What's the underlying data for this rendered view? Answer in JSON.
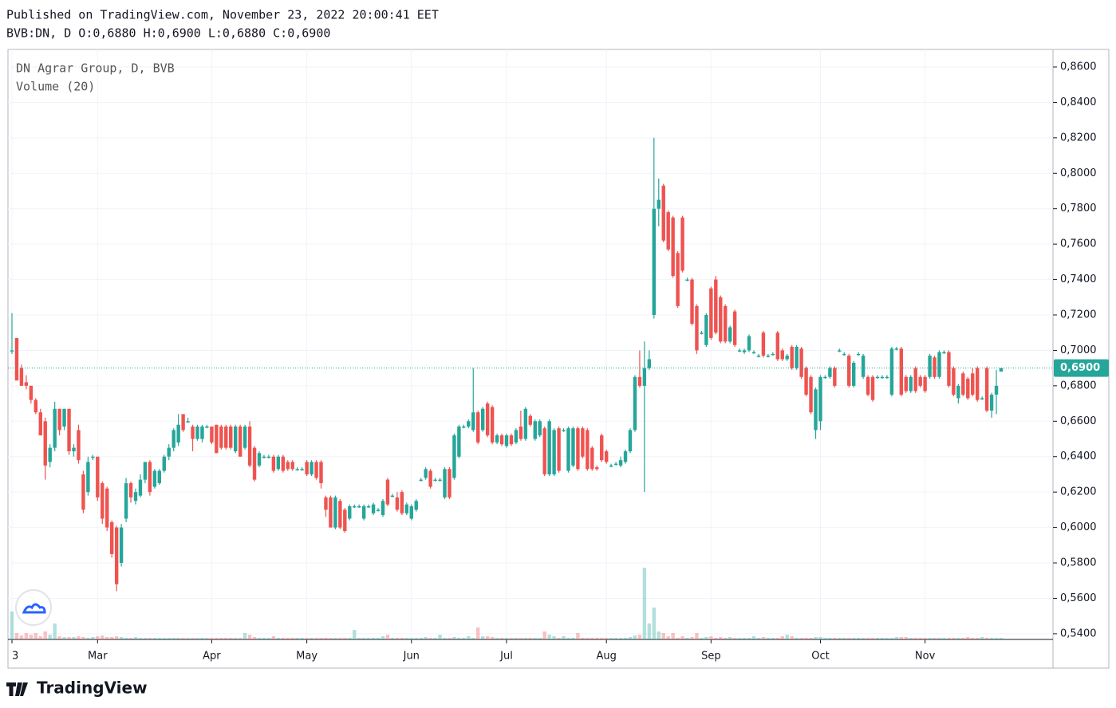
{
  "chart_data": {
    "type": "candlestick",
    "title": "Published on TradingView.com, November 23, 2022 20:00:41 EET",
    "subtitle": "BVB:DN, D O:0,6880 H:0,6900 L:0,6880 C:0,6900",
    "series_label": "DN Agrar Group, D, BVB",
    "volume_label": "Volume (20)",
    "brand": "TradingView",
    "up_color": "#26a69a",
    "down_color": "#ef5350",
    "ylim": [
      0.5368,
      0.8699
    ],
    "yticks": [
      {
        "value": 0.54,
        "label": "0,5400"
      },
      {
        "value": 0.56,
        "label": "0,5600"
      },
      {
        "value": 0.58,
        "label": "0,5800"
      },
      {
        "value": 0.6,
        "label": "0,6000"
      },
      {
        "value": 0.62,
        "label": "0,6200"
      },
      {
        "value": 0.64,
        "label": "0,6400"
      },
      {
        "value": 0.66,
        "label": "0,6600"
      },
      {
        "value": 0.68,
        "label": "0,6800"
      },
      {
        "value": 0.7,
        "label": "0,7000"
      },
      {
        "value": 0.72,
        "label": "0,7200"
      },
      {
        "value": 0.74,
        "label": "0,7400"
      },
      {
        "value": 0.76,
        "label": "0,7600"
      },
      {
        "value": 0.78,
        "label": "0,7800"
      },
      {
        "value": 0.8,
        "label": "0,8000"
      },
      {
        "value": 0.82,
        "label": "0,8200"
      },
      {
        "value": 0.84,
        "label": "0,8400"
      },
      {
        "value": 0.86,
        "label": "0,8600"
      }
    ],
    "xticks": [
      {
        "value": 0,
        "label": "3"
      },
      {
        "value": 18,
        "label": "Mar"
      },
      {
        "value": 42,
        "label": "Apr"
      },
      {
        "value": 62,
        "label": "May"
      },
      {
        "value": 84,
        "label": "Jun"
      },
      {
        "value": 104,
        "label": "Jul"
      },
      {
        "value": 125,
        "label": "Aug"
      },
      {
        "value": 147,
        "label": "Sep"
      },
      {
        "value": 170,
        "label": "Oct"
      },
      {
        "value": 192,
        "label": "Nov"
      }
    ],
    "grid": true,
    "last_price": {
      "value": 0.69,
      "label": "0,6900"
    },
    "ohlc": [
      [
        0.7,
        0.721,
        0.698,
        0.7
      ],
      [
        0.707,
        0.707,
        0.683,
        0.683
      ],
      [
        0.69,
        0.692,
        0.68,
        0.68
      ],
      [
        0.682,
        0.686,
        0.678,
        0.68
      ],
      [
        0.68,
        0.68,
        0.67,
        0.672
      ],
      [
        0.672,
        0.673,
        0.664,
        0.665
      ],
      [
        0.665,
        0.667,
        0.652,
        0.652
      ],
      [
        0.66,
        0.662,
        0.627,
        0.635
      ],
      [
        0.637,
        0.647,
        0.634,
        0.645
      ],
      [
        0.645,
        0.671,
        0.643,
        0.667
      ],
      [
        0.667,
        0.667,
        0.652,
        0.655
      ],
      [
        0.657,
        0.667,
        0.655,
        0.667
      ],
      [
        0.667,
        0.667,
        0.641,
        0.643
      ],
      [
        0.643,
        0.647,
        0.64,
        0.645
      ],
      [
        0.655,
        0.658,
        0.636,
        0.638
      ],
      [
        0.63,
        0.632,
        0.608,
        0.61
      ],
      [
        0.62,
        0.64,
        0.618,
        0.637
      ],
      [
        0.64,
        0.641,
        0.638,
        0.64
      ],
      [
        0.64,
        0.64,
        0.615,
        0.617
      ],
      [
        0.625,
        0.626,
        0.602,
        0.605
      ],
      [
        0.622,
        0.623,
        0.598,
        0.6
      ],
      [
        0.603,
        0.604,
        0.583,
        0.585
      ],
      [
        0.6,
        0.601,
        0.564,
        0.568
      ],
      [
        0.58,
        0.602,
        0.578,
        0.6
      ],
      [
        0.605,
        0.628,
        0.603,
        0.625
      ],
      [
        0.625,
        0.626,
        0.614,
        0.617
      ],
      [
        0.615,
        0.622,
        0.613,
        0.62
      ],
      [
        0.618,
        0.63,
        0.617,
        0.627
      ],
      [
        0.627,
        0.637,
        0.625,
        0.637
      ],
      [
        0.637,
        0.638,
        0.618,
        0.62
      ],
      [
        0.623,
        0.633,
        0.622,
        0.632
      ],
      [
        0.625,
        0.633,
        0.624,
        0.632
      ],
      [
        0.632,
        0.641,
        0.631,
        0.64
      ],
      [
        0.64,
        0.647,
        0.638,
        0.645
      ],
      [
        0.645,
        0.656,
        0.643,
        0.655
      ],
      [
        0.648,
        0.664,
        0.646,
        0.658
      ],
      [
        0.664,
        0.664,
        0.654,
        0.655
      ],
      [
        0.66,
        0.662,
        0.659,
        0.66
      ],
      [
        0.657,
        0.658,
        0.643,
        0.65
      ],
      [
        0.65,
        0.658,
        0.649,
        0.657
      ],
      [
        0.65,
        0.658,
        0.648,
        0.657
      ],
      [
        0.657,
        0.658,
        0.656,
        0.657
      ],
      [
        0.657,
        0.657,
        0.647,
        0.648
      ],
      [
        0.658,
        0.658,
        0.642,
        0.642
      ],
      [
        0.657,
        0.658,
        0.644,
        0.645
      ],
      [
        0.657,
        0.658,
        0.644,
        0.645
      ],
      [
        0.657,
        0.658,
        0.644,
        0.645
      ],
      [
        0.643,
        0.658,
        0.642,
        0.657
      ],
      [
        0.657,
        0.658,
        0.64,
        0.64
      ],
      [
        0.645,
        0.658,
        0.644,
        0.657
      ],
      [
        0.657,
        0.66,
        0.634,
        0.635
      ],
      [
        0.645,
        0.646,
        0.626,
        0.627
      ],
      [
        0.635,
        0.643,
        0.634,
        0.642
      ],
      [
        0.64,
        0.641,
        0.639,
        0.64
      ],
      [
        0.64,
        0.641,
        0.639,
        0.64
      ],
      [
        0.64,
        0.641,
        0.631,
        0.632
      ],
      [
        0.633,
        0.641,
        0.632,
        0.64
      ],
      [
        0.64,
        0.641,
        0.631,
        0.632
      ],
      [
        0.637,
        0.638,
        0.632,
        0.633
      ],
      [
        0.637,
        0.638,
        0.632,
        0.633
      ],
      [
        0.633,
        0.634,
        0.632,
        0.633
      ],
      [
        0.633,
        0.634,
        0.632,
        0.633
      ],
      [
        0.637,
        0.638,
        0.629,
        0.63
      ],
      [
        0.63,
        0.638,
        0.629,
        0.637
      ],
      [
        0.637,
        0.638,
        0.627,
        0.628
      ],
      [
        0.637,
        0.638,
        0.622,
        0.625
      ],
      [
        0.617,
        0.618,
        0.606,
        0.61
      ],
      [
        0.617,
        0.618,
        0.6,
        0.6
      ],
      [
        0.6,
        0.618,
        0.599,
        0.617
      ],
      [
        0.615,
        0.616,
        0.599,
        0.6
      ],
      [
        0.61,
        0.611,
        0.597,
        0.598
      ],
      [
        0.605,
        0.613,
        0.604,
        0.612
      ],
      [
        0.612,
        0.613,
        0.611,
        0.612
      ],
      [
        0.612,
        0.613,
        0.611,
        0.612
      ],
      [
        0.605,
        0.613,
        0.604,
        0.612
      ],
      [
        0.612,
        0.613,
        0.611,
        0.612
      ],
      [
        0.608,
        0.614,
        0.607,
        0.613
      ],
      [
        0.61,
        0.611,
        0.609,
        0.61
      ],
      [
        0.607,
        0.616,
        0.606,
        0.615
      ],
      [
        0.627,
        0.628,
        0.612,
        0.613
      ],
      [
        0.618,
        0.619,
        0.617,
        0.618
      ],
      [
        0.617,
        0.62,
        0.609,
        0.61
      ],
      [
        0.62,
        0.621,
        0.607,
        0.608
      ],
      [
        0.608,
        0.614,
        0.607,
        0.613
      ],
      [
        0.605,
        0.613,
        0.604,
        0.612
      ],
      [
        0.61,
        0.616,
        0.609,
        0.615
      ],
      [
        0.627,
        0.628,
        0.626,
        0.627
      ],
      [
        0.628,
        0.634,
        0.627,
        0.633
      ],
      [
        0.632,
        0.633,
        0.622,
        0.623
      ],
      [
        0.627,
        0.628,
        0.626,
        0.627
      ],
      [
        0.627,
        0.628,
        0.626,
        0.627
      ],
      [
        0.617,
        0.634,
        0.616,
        0.633
      ],
      [
        0.633,
        0.634,
        0.616,
        0.617
      ],
      [
        0.628,
        0.653,
        0.627,
        0.652
      ],
      [
        0.64,
        0.658,
        0.639,
        0.657
      ],
      [
        0.657,
        0.658,
        0.656,
        0.657
      ],
      [
        0.657,
        0.661,
        0.656,
        0.66
      ],
      [
        0.655,
        0.69,
        0.654,
        0.665
      ],
      [
        0.665,
        0.666,
        0.647,
        0.648
      ],
      [
        0.655,
        0.668,
        0.654,
        0.667
      ],
      [
        0.67,
        0.671,
        0.651,
        0.652
      ],
      [
        0.668,
        0.669,
        0.647,
        0.648
      ],
      [
        0.648,
        0.653,
        0.647,
        0.652
      ],
      [
        0.652,
        0.653,
        0.646,
        0.647
      ],
      [
        0.646,
        0.653,
        0.645,
        0.652
      ],
      [
        0.652,
        0.653,
        0.646,
        0.647
      ],
      [
        0.648,
        0.656,
        0.647,
        0.655
      ],
      [
        0.657,
        0.666,
        0.649,
        0.65
      ],
      [
        0.65,
        0.668,
        0.649,
        0.667
      ],
      [
        0.663,
        0.664,
        0.657,
        0.658
      ],
      [
        0.65,
        0.661,
        0.649,
        0.66
      ],
      [
        0.652,
        0.661,
        0.651,
        0.66
      ],
      [
        0.656,
        0.657,
        0.629,
        0.63
      ],
      [
        0.63,
        0.661,
        0.629,
        0.66
      ],
      [
        0.63,
        0.656,
        0.629,
        0.655
      ],
      [
        0.656,
        0.657,
        0.631,
        0.632
      ],
      [
        0.655,
        0.656,
        0.654,
        0.655
      ],
      [
        0.632,
        0.657,
        0.631,
        0.656
      ],
      [
        0.635,
        0.657,
        0.634,
        0.656
      ],
      [
        0.656,
        0.657,
        0.632,
        0.633
      ],
      [
        0.656,
        0.657,
        0.639,
        0.64
      ],
      [
        0.655,
        0.656,
        0.632,
        0.633
      ],
      [
        0.645,
        0.646,
        0.632,
        0.633
      ],
      [
        0.634,
        0.635,
        0.632,
        0.633
      ],
      [
        0.652,
        0.653,
        0.637,
        0.638
      ],
      [
        0.643,
        0.644,
        0.636,
        0.637
      ],
      [
        0.635,
        0.636,
        0.634,
        0.635
      ],
      [
        0.636,
        0.637,
        0.635,
        0.636
      ],
      [
        0.635,
        0.64,
        0.634,
        0.638
      ],
      [
        0.637,
        0.644,
        0.636,
        0.643
      ],
      [
        0.643,
        0.656,
        0.642,
        0.655
      ],
      [
        0.655,
        0.686,
        0.654,
        0.685
      ],
      [
        0.685,
        0.7,
        0.679,
        0.68
      ],
      [
        0.68,
        0.705,
        0.62,
        0.69
      ],
      [
        0.69,
        0.7,
        0.689,
        0.695
      ],
      [
        0.72,
        0.82,
        0.718,
        0.78
      ],
      [
        0.78,
        0.797,
        0.77,
        0.785
      ],
      [
        0.793,
        0.794,
        0.761,
        0.762
      ],
      [
        0.778,
        0.779,
        0.756,
        0.757
      ],
      [
        0.775,
        0.776,
        0.741,
        0.742
      ],
      [
        0.755,
        0.756,
        0.724,
        0.725
      ],
      [
        0.775,
        0.776,
        0.744,
        0.745
      ],
      [
        0.74,
        0.741,
        0.739,
        0.74
      ],
      [
        0.74,
        0.741,
        0.714,
        0.715
      ],
      [
        0.725,
        0.726,
        0.698,
        0.7
      ],
      [
        0.71,
        0.711,
        0.709,
        0.71
      ],
      [
        0.703,
        0.721,
        0.702,
        0.72
      ],
      [
        0.735,
        0.736,
        0.706,
        0.707
      ],
      [
        0.74,
        0.742,
        0.709,
        0.71
      ],
      [
        0.73,
        0.731,
        0.704,
        0.705
      ],
      [
        0.725,
        0.726,
        0.704,
        0.705
      ],
      [
        0.705,
        0.714,
        0.704,
        0.713
      ],
      [
        0.722,
        0.723,
        0.702,
        0.703
      ],
      [
        0.7,
        0.701,
        0.699,
        0.7
      ],
      [
        0.699,
        0.701,
        0.698,
        0.7
      ],
      [
        0.7,
        0.709,
        0.699,
        0.708
      ],
      [
        0.699,
        0.7,
        0.698,
        0.699
      ],
      [
        0.697,
        0.698,
        0.696,
        0.697
      ],
      [
        0.71,
        0.711,
        0.696,
        0.697
      ],
      [
        0.697,
        0.698,
        0.696,
        0.697
      ],
      [
        0.698,
        0.699,
        0.697,
        0.698
      ],
      [
        0.71,
        0.711,
        0.694,
        0.695
      ],
      [
        0.7,
        0.701,
        0.694,
        0.695
      ],
      [
        0.695,
        0.698,
        0.694,
        0.697
      ],
      [
        0.702,
        0.703,
        0.689,
        0.69
      ],
      [
        0.69,
        0.703,
        0.689,
        0.702
      ],
      [
        0.701,
        0.702,
        0.684,
        0.685
      ],
      [
        0.69,
        0.691,
        0.674,
        0.675
      ],
      [
        0.685,
        0.686,
        0.664,
        0.665
      ],
      [
        0.655,
        0.679,
        0.65,
        0.678
      ],
      [
        0.66,
        0.686,
        0.655,
        0.685
      ],
      [
        0.685,
        0.686,
        0.684,
        0.685
      ],
      [
        0.685,
        0.691,
        0.684,
        0.69
      ],
      [
        0.69,
        0.691,
        0.679,
        0.68
      ],
      [
        0.7,
        0.701,
        0.699,
        0.7
      ],
      [
        0.698,
        0.699,
        0.697,
        0.698
      ],
      [
        0.697,
        0.698,
        0.679,
        0.68
      ],
      [
        0.68,
        0.694,
        0.679,
        0.693
      ],
      [
        0.698,
        0.699,
        0.697,
        0.698
      ],
      [
        0.685,
        0.698,
        0.684,
        0.697
      ],
      [
        0.685,
        0.686,
        0.674,
        0.675
      ],
      [
        0.685,
        0.686,
        0.671,
        0.672
      ],
      [
        0.685,
        0.686,
        0.684,
        0.685
      ],
      [
        0.685,
        0.686,
        0.684,
        0.685
      ],
      [
        0.685,
        0.686,
        0.684,
        0.685
      ],
      [
        0.675,
        0.702,
        0.674,
        0.701
      ],
      [
        0.701,
        0.702,
        0.7,
        0.701
      ],
      [
        0.701,
        0.702,
        0.674,
        0.675
      ],
      [
        0.685,
        0.686,
        0.676,
        0.677
      ],
      [
        0.677,
        0.686,
        0.676,
        0.685
      ],
      [
        0.69,
        0.691,
        0.676,
        0.677
      ],
      [
        0.685,
        0.686,
        0.679,
        0.68
      ],
      [
        0.685,
        0.686,
        0.676,
        0.677
      ],
      [
        0.685,
        0.698,
        0.684,
        0.697
      ],
      [
        0.696,
        0.697,
        0.684,
        0.685
      ],
      [
        0.685,
        0.7,
        0.684,
        0.699
      ],
      [
        0.699,
        0.7,
        0.698,
        0.699
      ],
      [
        0.699,
        0.7,
        0.679,
        0.68
      ],
      [
        0.69,
        0.691,
        0.674,
        0.675
      ],
      [
        0.673,
        0.681,
        0.67,
        0.68
      ],
      [
        0.687,
        0.688,
        0.674,
        0.675
      ],
      [
        0.684,
        0.685,
        0.672,
        0.673
      ],
      [
        0.687,
        0.69,
        0.674,
        0.675
      ],
      [
        0.69,
        0.691,
        0.671,
        0.672
      ],
      [
        0.673,
        0.674,
        0.672,
        0.673
      ],
      [
        0.69,
        0.691,
        0.665,
        0.666
      ],
      [
        0.666,
        0.676,
        0.662,
        0.675
      ],
      [
        0.675,
        0.689,
        0.664,
        0.68
      ],
      [
        0.688,
        0.69,
        0.688,
        0.69
      ]
    ],
    "volume": [
      35,
      8,
      5,
      8,
      6,
      8,
      4,
      10,
      6,
      20,
      4,
      3,
      3,
      3,
      4,
      3,
      2,
      3,
      4,
      5,
      3,
      3,
      4,
      3,
      2,
      2,
      3,
      2,
      2,
      2,
      2,
      2,
      2,
      2,
      2,
      2,
      2,
      2,
      2,
      2,
      2,
      2,
      2,
      2,
      2,
      2,
      2,
      2,
      2,
      8,
      6,
      3,
      2,
      2,
      2,
      4,
      2,
      2,
      2,
      2,
      2,
      2,
      2,
      2,
      2,
      2,
      2,
      2,
      2,
      2,
      2,
      2,
      12,
      2,
      2,
      2,
      2,
      2,
      4,
      6,
      2,
      2,
      2,
      2,
      2,
      2,
      2,
      3,
      2,
      2,
      6,
      2,
      2,
      3,
      2,
      2,
      4,
      2,
      15,
      4,
      4,
      3,
      2,
      2,
      2,
      2,
      2,
      2,
      2,
      2,
      2,
      2,
      10,
      6,
      4,
      2,
      4,
      2,
      2,
      8,
      2,
      2,
      2,
      2,
      2,
      2,
      2,
      2,
      2,
      2,
      3,
      5,
      6,
      90,
      20,
      40,
      10,
      8,
      4,
      8,
      2,
      4,
      2,
      3,
      8,
      2,
      3,
      4,
      2,
      3,
      2,
      3,
      2,
      2,
      2,
      2,
      4,
      2,
      3,
      2,
      2,
      2,
      4,
      6,
      4,
      2,
      2,
      2,
      2,
      3,
      3,
      2,
      2,
      2,
      2,
      2,
      2,
      2,
      2,
      2,
      2,
      2,
      2,
      2,
      2,
      2,
      3,
      3,
      3,
      2,
      2,
      2,
      2,
      2,
      2,
      2,
      2,
      2,
      2,
      2,
      2,
      3,
      2,
      2,
      3,
      2,
      2,
      2,
      2
    ]
  }
}
